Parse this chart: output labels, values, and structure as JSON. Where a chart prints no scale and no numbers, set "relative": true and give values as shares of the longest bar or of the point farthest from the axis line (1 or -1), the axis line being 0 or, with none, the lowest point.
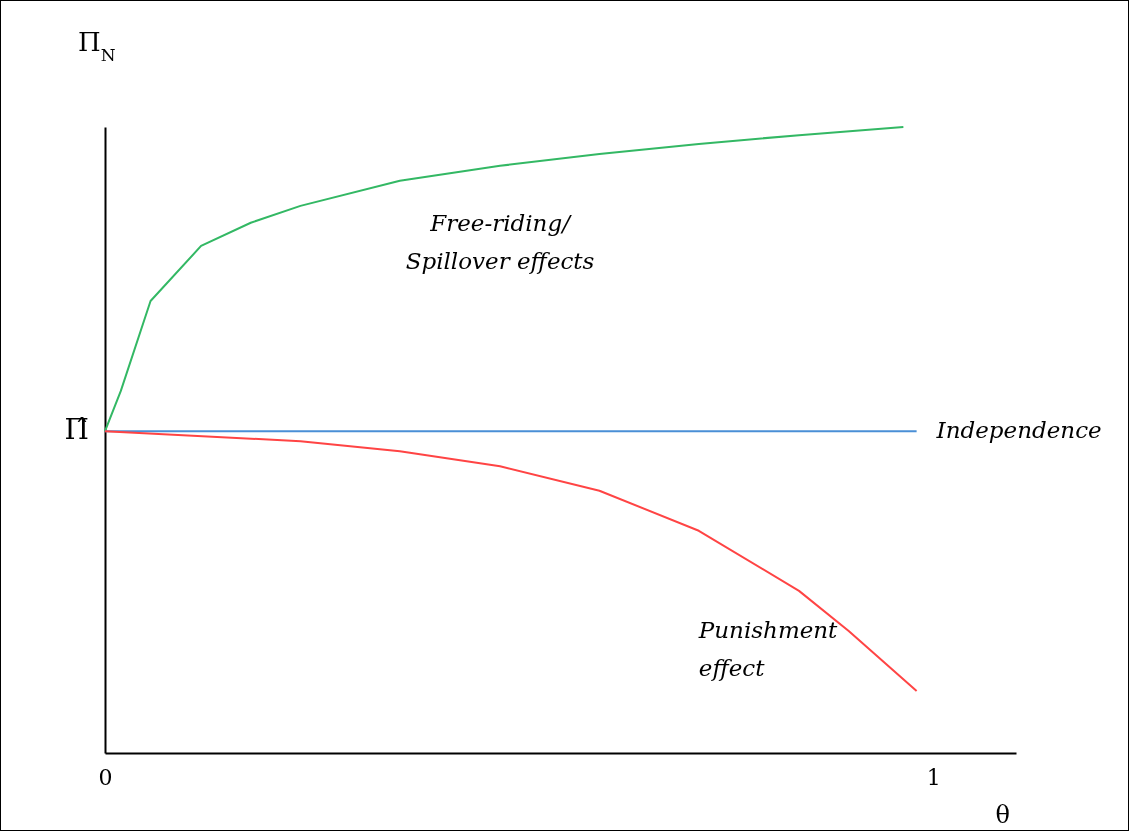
{
  "chart_data": {
    "type": "line",
    "relative": true,
    "xlabel": "θ",
    "ylabel": "Π$_{N}$",
    "xlim": [
      0,
      1.1
    ],
    "xticks": [
      0,
      1
    ],
    "grid": false,
    "legend": false,
    "marker": "none",
    "tick_labels": "x",
    "annotations": [
      {
        "text": "Π̂",
        "x": 0,
        "y": 0.514
      }
    ],
    "series": [
      {
        "name": "Free-riding/\nSpillover effects",
        "color": "#33b864",
        "x": [
          0,
          0.019,
          0.055,
          0.116,
          0.176,
          0.236,
          0.356,
          0.477,
          0.597,
          0.717,
          0.838,
          0.964
        ],
        "values": [
          0.514,
          0.578,
          0.722,
          0.81,
          0.847,
          0.874,
          0.914,
          0.938,
          0.957,
          0.973,
          0.987,
          1
        ]
      },
      {
        "name": "Independence",
        "color": "#4a8fd6",
        "x": [
          0,
          0.98
        ],
        "values": [
          0.514,
          0.514
        ]
      },
      {
        "name": "Punishment\neffect",
        "color": "#ff4444",
        "x": [
          0,
          0.236,
          0.356,
          0.477,
          0.597,
          0.717,
          0.838,
          0.898,
          0.98
        ],
        "values": [
          0.514,
          0.498,
          0.482,
          0.458,
          0.419,
          0.355,
          0.259,
          0.195,
          0.099
        ]
      }
    ]
  }
}
